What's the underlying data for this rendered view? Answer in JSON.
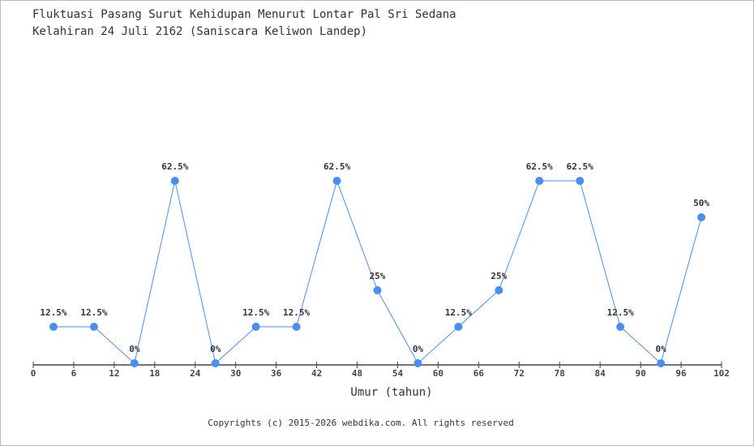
{
  "chart_data": {
    "type": "line",
    "title": "Fluktuasi Pasang Surut Kehidupan Menurut Lontar Pal Sri Sedana",
    "subtitle": "Kelahiran 24 Juli 2162 (Saniscara Keliwon Landep)",
    "xlabel": "Umur (tahun)",
    "ylabel": "",
    "xlim": [
      0,
      102
    ],
    "xticks": [
      0,
      6,
      12,
      18,
      24,
      30,
      36,
      42,
      48,
      54,
      60,
      66,
      72,
      78,
      84,
      90,
      96,
      102
    ],
    "x": [
      3,
      9,
      15,
      21,
      27,
      33,
      39,
      45,
      51,
      57,
      63,
      69,
      75,
      81,
      87,
      93,
      99
    ],
    "values": [
      12.5,
      12.5,
      0,
      62.5,
      0,
      12.5,
      12.5,
      62.5,
      25,
      0,
      12.5,
      25,
      62.5,
      62.5,
      12.5,
      0,
      50
    ],
    "data_label_suffix": "%",
    "grid": false,
    "color": "#4a8ef0"
  },
  "footer": "Copyrights (c) 2015-2026 webdika.com. All rights reserved"
}
